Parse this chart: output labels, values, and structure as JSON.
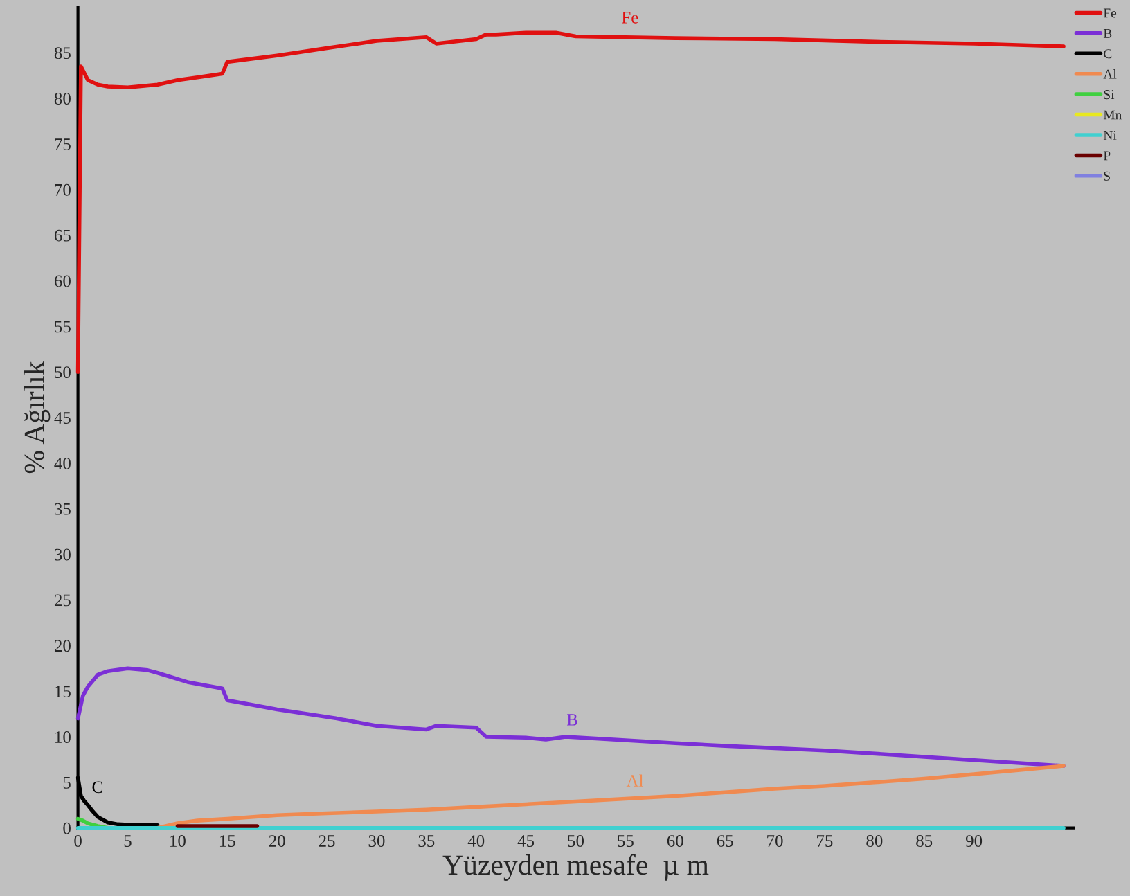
{
  "chart_data": {
    "type": "line",
    "xlabel": "Yüzeyden mesafe  µ m",
    "ylabel": "% Ağırlık",
    "xlim": [
      0,
      100
    ],
    "xticks": [
      0,
      5,
      10,
      15,
      20,
      25,
      30,
      35,
      40,
      45,
      50,
      55,
      60,
      65,
      70,
      75,
      80,
      85,
      90
    ],
    "ylim": [
      0,
      90
    ],
    "yticks": [
      0,
      5,
      10,
      15,
      20,
      25,
      30,
      35,
      40,
      45,
      50,
      55,
      60,
      65,
      70,
      75,
      80,
      85
    ],
    "grid": false,
    "legend": "top right",
    "marker": "none",
    "line_style": "solid",
    "series": [
      {
        "name": "Fe",
        "color": "#e01010",
        "x": [
          0,
          0.3,
          1,
          2,
          3,
          5,
          8,
          10,
          12,
          14.5,
          15,
          20,
          25,
          30,
          35,
          36,
          40,
          41,
          42,
          45,
          48,
          50,
          60,
          70,
          80,
          90,
          99
        ],
        "values": [
          50,
          83.5,
          82,
          81.5,
          81.3,
          81.2,
          81.5,
          82,
          82.3,
          82.7,
          84,
          84.7,
          85.5,
          86.3,
          86.7,
          86,
          86.5,
          87,
          87,
          87.2,
          87.2,
          86.8,
          86.6,
          86.5,
          86.2,
          86,
          85.7
        ]
      },
      {
        "name": "B",
        "color": "#7b2fd6",
        "x": [
          0,
          0.5,
          1,
          2,
          3,
          5,
          7,
          8,
          11,
          14.5,
          15,
          20,
          26,
          30,
          35,
          36,
          40,
          41,
          45,
          47,
          49,
          52,
          60,
          65,
          75,
          85,
          99
        ],
        "values": [
          12,
          14.5,
          15.5,
          16.8,
          17.2,
          17.5,
          17.3,
          17,
          16,
          15.3,
          14,
          13,
          12,
          11.2,
          10.8,
          11.2,
          11,
          10,
          9.9,
          9.7,
          10,
          9.8,
          9.3,
          9,
          8.5,
          7.8,
          6.8
        ]
      },
      {
        "name": "C",
        "color": "#000000",
        "x": [
          0,
          0.3,
          0.6,
          1,
          1.5,
          2,
          3,
          4,
          6,
          8
        ],
        "values": [
          5.5,
          3.5,
          3,
          2.5,
          1.8,
          1.2,
          0.6,
          0.4,
          0.3,
          0.3
        ]
      },
      {
        "name": "Al",
        "color": "#f08a50",
        "x": [
          8,
          10,
          12,
          15,
          20,
          25,
          30,
          35,
          40,
          45,
          50,
          55,
          60,
          65,
          70,
          75,
          80,
          85,
          90,
          95,
          99
        ],
        "values": [
          0,
          0.5,
          0.8,
          1,
          1.4,
          1.6,
          1.8,
          2,
          2.3,
          2.6,
          2.9,
          3.2,
          3.5,
          3.9,
          4.3,
          4.6,
          5,
          5.4,
          5.9,
          6.4,
          6.8
        ]
      },
      {
        "name": "Si",
        "color": "#40d040",
        "x": [
          0,
          0.5,
          1,
          2,
          3
        ],
        "values": [
          1,
          0.8,
          0.5,
          0.2,
          0
        ]
      },
      {
        "name": "Mn",
        "color": "#e8e820"
      },
      {
        "name": "Ni",
        "color": "#40d0d0",
        "x": [
          0,
          99
        ],
        "values": [
          0,
          0
        ]
      },
      {
        "name": "P",
        "color": "#6a0000",
        "x": [
          10,
          18
        ],
        "values": [
          0.2,
          0.2
        ]
      },
      {
        "name": "S",
        "color": "#8080e0"
      }
    ],
    "annotations": [
      {
        "text": "Fe",
        "x": 54,
        "y": 87
      },
      {
        "text": "B",
        "x": 48.5,
        "y": 10
      },
      {
        "text": "C",
        "x": 0.8,
        "y": 2.6
      },
      {
        "text": "Al",
        "x": 54.5,
        "y": 3.3
      }
    ]
  }
}
